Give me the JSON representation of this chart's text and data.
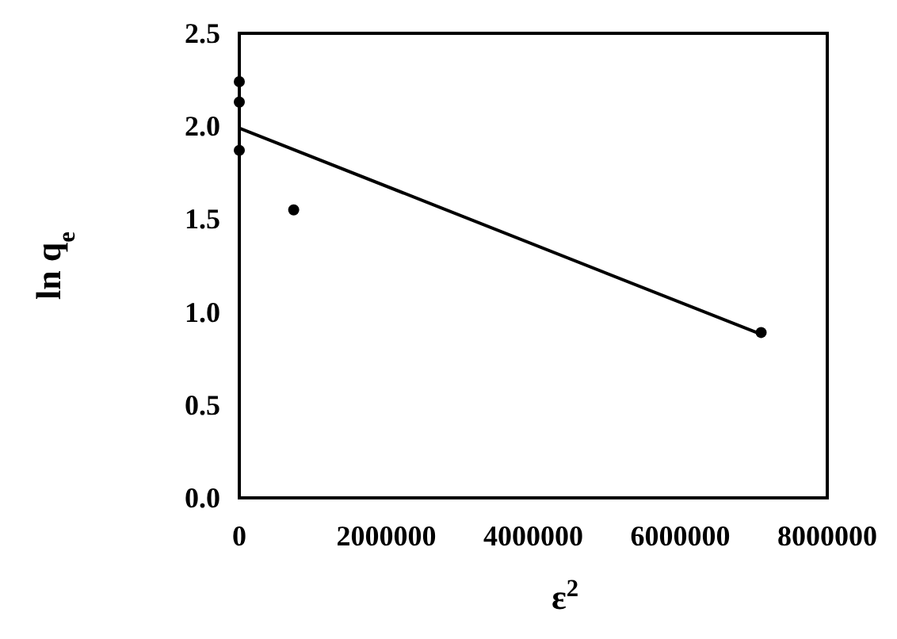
{
  "chart_data": {
    "type": "scatter",
    "xlabel": "ε$^{2}$",
    "ylabel": "ln q$_{e}$",
    "xlim": [
      0,
      8000000
    ],
    "ylim": [
      0,
      2.5
    ],
    "xticks": [
      0,
      2000000,
      4000000,
      6000000,
      8000000
    ],
    "yticks": [
      {
        "value": 0,
        "label": "0.0"
      },
      {
        "value": 0.5,
        "label": "0.5"
      },
      {
        "value": 1,
        "label": "1.0"
      },
      {
        "value": 1.5,
        "label": "1.5"
      },
      {
        "value": 2,
        "label": "2.0"
      },
      {
        "value": 2.5,
        "label": "2.5"
      }
    ],
    "grid": false,
    "marker": "circle",
    "series": [
      {
        "color": "#000000",
        "x": [
          0,
          0,
          0,
          740000,
          7100000
        ],
        "values": [
          2.24,
          2.13,
          1.87,
          1.55,
          0.89
        ]
      },
      {
        "type": "line",
        "color": "#000000",
        "x": [
          0,
          7100000
        ],
        "values": [
          1.99,
          0.88
        ],
        "marker": "none",
        "line_style": "solid"
      }
    ]
  }
}
